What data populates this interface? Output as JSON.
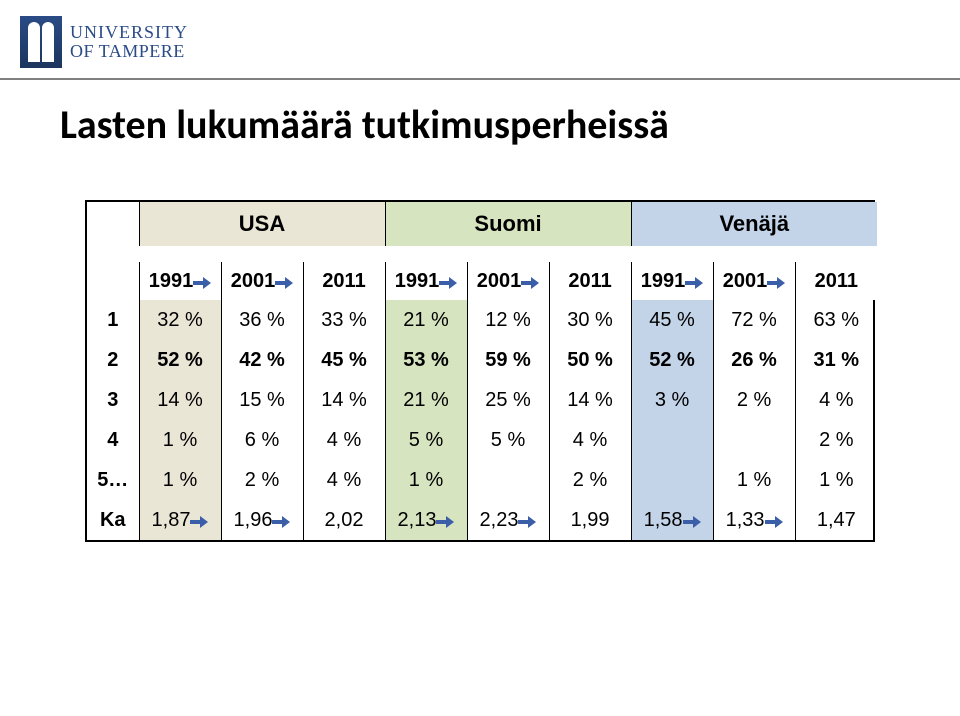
{
  "logo": {
    "line1": "UNIVERSITY",
    "line2": "OF TAMPERE"
  },
  "title": "Lasten lukumäärä tutkimusperheissä",
  "colors": {
    "usa_bg": "#eae6d6",
    "suomi_bg": "#d6e4c0",
    "venaja_bg": "#c3d3e8",
    "arrow_fill": "#3a5ea8",
    "divider": "#808080",
    "text": "#000000"
  },
  "fontsizes": {
    "title": 40,
    "country_header": 22,
    "year_header": 20,
    "cell": 20
  },
  "countries": [
    "USA",
    "Suomi",
    "Venäjä"
  ],
  "years": [
    "1991",
    "2001",
    "2011",
    "1991",
    "2001",
    "2011",
    "1991",
    "2001",
    "2011"
  ],
  "rows": [
    {
      "label": "1",
      "bold": false,
      "cells": [
        "32 %",
        "36 %",
        "33 %",
        "21 %",
        "12 %",
        "30 %",
        "45 %",
        "72 %",
        "63 %"
      ]
    },
    {
      "label": "2",
      "bold": true,
      "cells": [
        "52 %",
        "42 %",
        "45 %",
        "53 %",
        "59 %",
        "50 %",
        "52 %",
        "26 %",
        "31 %"
      ]
    },
    {
      "label": "3",
      "bold": false,
      "cells": [
        "14 %",
        "15 %",
        "14 %",
        "21 %",
        "25 %",
        "14 %",
        "3 %",
        "2 %",
        "4 %"
      ]
    },
    {
      "label": "4",
      "bold": false,
      "cells": [
        "1 %",
        "6 %",
        "4 %",
        "5 %",
        "5 %",
        "4 %",
        "",
        "",
        "2 %"
      ]
    },
    {
      "label": "5…",
      "bold": false,
      "cells": [
        "1 %",
        "2 %",
        "4 %",
        "1 %",
        "",
        "2 %",
        "",
        "1 %",
        "1 %"
      ]
    },
    {
      "label": "Ka",
      "bold": false,
      "cells": [
        "1,87",
        "1,96",
        "2,02",
        "2,13",
        "2,23",
        "1,99",
        "1,58",
        "1,33",
        "1,47"
      ]
    }
  ],
  "year_arrows": [
    true,
    true,
    false,
    true,
    true,
    false,
    true,
    true,
    false
  ],
  "ka_arrows": [
    true,
    true,
    false,
    true,
    true,
    false,
    true,
    true,
    false
  ],
  "col_1991_highlight_class": [
    "usa-hl",
    "",
    "",
    "suomi-hl",
    "",
    "",
    "venaja-hl",
    "",
    ""
  ]
}
